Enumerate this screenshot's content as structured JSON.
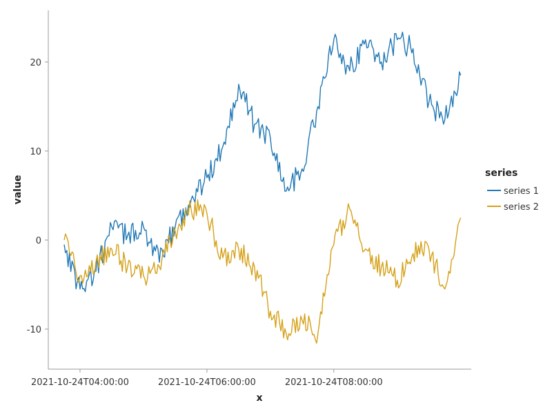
{
  "chart_data": {
    "type": "line",
    "xlabel": "x",
    "ylabel": "value",
    "x_ticks": [
      "2021-10-24T04:00:00",
      "2021-10-24T06:00:00",
      "2021-10-24T08:00:00"
    ],
    "y_ticks": [
      -10,
      0,
      10,
      20
    ],
    "ylim": [
      -14.5,
      25.8
    ],
    "xlim": [
      "2021-10-24T03:30:00",
      "2021-10-24T10:10:00"
    ],
    "grid": false,
    "legend": {
      "title": "series",
      "position": "right"
    },
    "x": [
      "2021-10-24T03:45:00",
      "2021-10-24T04:00:00",
      "2021-10-24T04:15:00",
      "2021-10-24T04:30:00",
      "2021-10-24T04:45:00",
      "2021-10-24T05:00:00",
      "2021-10-24T05:15:00",
      "2021-10-24T05:30:00",
      "2021-10-24T05:45:00",
      "2021-10-24T06:00:00",
      "2021-10-24T06:15:00",
      "2021-10-24T06:30:00",
      "2021-10-24T06:45:00",
      "2021-10-24T07:00:00",
      "2021-10-24T07:15:00",
      "2021-10-24T07:30:00",
      "2021-10-24T07:45:00",
      "2021-10-24T08:00:00",
      "2021-10-24T08:15:00",
      "2021-10-24T08:30:00",
      "2021-10-24T08:45:00",
      "2021-10-24T09:00:00",
      "2021-10-24T09:15:00",
      "2021-10-24T09:30:00",
      "2021-10-24T09:45:00",
      "2021-10-24T10:00:00"
    ],
    "series": [
      {
        "name": "series 1",
        "color": "#1f77b4",
        "values": [
          -0.5,
          -5.5,
          -3.5,
          1.5,
          0.5,
          1.5,
          -2.5,
          1.5,
          4.5,
          7.0,
          10.5,
          17.5,
          13.0,
          11.5,
          5.5,
          8.0,
          15.0,
          22.5,
          19.0,
          22.5,
          20.0,
          22.5,
          21.5,
          15.5,
          13.5,
          18.5
        ]
      },
      {
        "name": "series 2",
        "color": "#d4a017",
        "values": [
          0.0,
          -4.0,
          -2.5,
          -1.0,
          -3.0,
          -4.0,
          -3.0,
          1.0,
          3.5,
          3.0,
          -2.0,
          -1.0,
          -3.0,
          -8.0,
          -10.5,
          -9.0,
          -10.5,
          -0.5,
          3.5,
          -1.0,
          -3.0,
          -4.5,
          -1.5,
          -1.0,
          -5.5,
          2.5
        ]
      }
    ]
  }
}
